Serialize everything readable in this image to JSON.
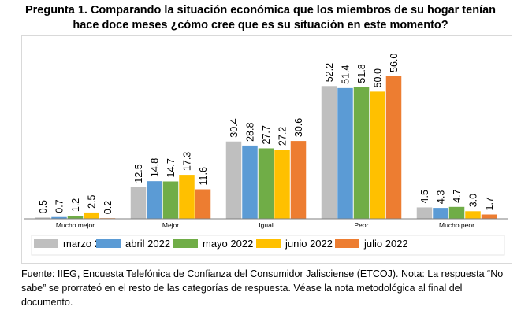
{
  "title_line1": "Pregunta 1. Comparando la situación económica que los miembros de su hogar tenían",
  "title_line2": "hace doce meses ¿cómo cree que es su situación en este momento?",
  "chart_data": {
    "type": "bar",
    "title": "Pregunta 1. Comparando la situación económica que los miembros de su hogar tenían hace doce meses ¿cómo cree que es su situación en este momento?",
    "xlabel": "",
    "ylabel": "",
    "categories": [
      "Mucho mejor",
      "Mejor",
      "Igual",
      "Peor",
      "Mucho peor"
    ],
    "series": [
      {
        "name": "marzo 2022",
        "color": "#bfbfbf",
        "values": [
          0.5,
          12.5,
          30.4,
          52.2,
          4.5
        ],
        "labels": [
          "0.5",
          "12.5",
          "30.4",
          "52.2",
          "4.5"
        ]
      },
      {
        "name": "abril 2022",
        "color": "#5b9bd5",
        "values": [
          0.7,
          14.8,
          28.8,
          51.4,
          4.3
        ],
        "labels": [
          "0.7",
          "14.8",
          "28.8",
          "51.4",
          "4.3"
        ]
      },
      {
        "name": "mayo 2022",
        "color": "#70ad47",
        "values": [
          1.2,
          14.7,
          27.7,
          51.8,
          4.7
        ],
        "labels": [
          "1.2",
          "14.7",
          "27.7",
          "51.8",
          "4.7"
        ]
      },
      {
        "name": "junio 2022",
        "color": "#ffc000",
        "values": [
          2.5,
          17.3,
          27.2,
          50.0,
          3.0
        ],
        "labels": [
          "2.5",
          "17.3",
          "27.2",
          "50.0",
          "3.0"
        ]
      },
      {
        "name": "julio 2022",
        "color": "#ed7d31",
        "values": [
          0.2,
          11.6,
          30.6,
          56.0,
          1.7
        ],
        "labels": [
          "0.2",
          "11.6",
          "30.6",
          "56.0",
          "1.7"
        ]
      }
    ],
    "ylim": [
      0,
      60
    ],
    "grid": false,
    "y_axis_visible": false,
    "data_labels": "rotated-vertical",
    "legend_position": "bottom"
  },
  "footer": {
    "text": "Fuente: IIEG, Encuesta Telefónica de Confianza del Consumidor Jalisciense (ETCOJ). Nota: La respuesta “No sabe” se prorrateó en el resto de las categorías de respuesta. Véase la nota metodológica al final del documento."
  }
}
